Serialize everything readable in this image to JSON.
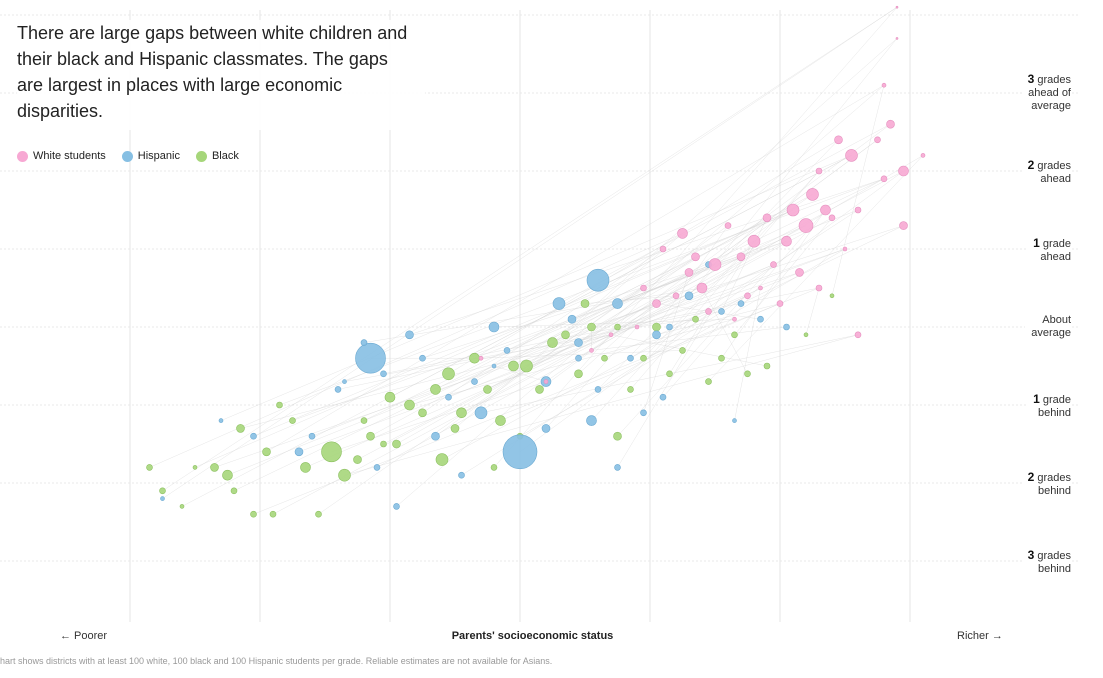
{
  "headline": "There are large gaps between white children and their black and Hispanic classmates. The gaps are largest in places with large economic disparities.",
  "legend": [
    {
      "label": "White students",
      "color": "#f7a8d3"
    },
    {
      "label": "Hispanic",
      "color": "#86bfe3"
    },
    {
      "label": "Black",
      "color": "#a6d67a"
    }
  ],
  "y_labels": [
    {
      "bold": "3",
      "text": "grades",
      "line2": "ahead of",
      "line3": "average"
    },
    {
      "bold": "2",
      "text": "grades",
      "line2": "ahead",
      "line3": ""
    },
    {
      "bold": "1",
      "text": "grade",
      "line2": "ahead",
      "line3": ""
    },
    {
      "bold": "",
      "text": "About",
      "line2": "average",
      "line3": ""
    },
    {
      "bold": "1",
      "text": "grade",
      "line2": "behind",
      "line3": ""
    },
    {
      "bold": "2",
      "text": "grades",
      "line2": "behind",
      "line3": ""
    },
    {
      "bold": "3",
      "text": "grades",
      "line2": "behind",
      "line3": ""
    }
  ],
  "x_left": "← Poorer",
  "x_title": "Parents' socioeconomic status",
  "x_right": "Richer →",
  "note": "hart shows districts with at least 100 white, 100 black and 100 Hispanic students per grade. Reliable estimates are not available for Asians.",
  "chart_data": {
    "type": "scatter",
    "title": "",
    "xlabel": "Parents' socioeconomic status",
    "ylabel": "",
    "xlim": [
      -3,
      3
    ],
    "ylim": [
      -3.5,
      3.8
    ],
    "y_ticks": [
      3,
      2,
      1,
      0,
      -1,
      -2,
      -3
    ],
    "grid": true,
    "legend_position": "top-left",
    "series": [
      {
        "name": "White students",
        "color": "#f7a8d3",
        "points": [
          [
            2.9,
            3.6,
            1
          ],
          [
            2.9,
            3.2,
            1
          ],
          [
            2.8,
            2.6,
            2
          ],
          [
            2.85,
            2.1,
            4
          ],
          [
            2.95,
            1.5,
            5
          ],
          [
            3.1,
            1.7,
            2
          ],
          [
            2.45,
            1.9,
            4
          ],
          [
            2.55,
            1.7,
            6
          ],
          [
            2.75,
            1.9,
            3
          ],
          [
            2.8,
            1.4,
            3
          ],
          [
            2.3,
            1.5,
            3
          ],
          [
            2.25,
            1.2,
            6
          ],
          [
            2.35,
            1.0,
            5
          ],
          [
            2.2,
            0.8,
            7
          ],
          [
            2.1,
            1.0,
            6
          ],
          [
            1.9,
            0.9,
            4
          ],
          [
            2.05,
            0.6,
            5
          ],
          [
            1.8,
            0.6,
            6
          ],
          [
            1.7,
            0.4,
            4
          ],
          [
            2.4,
            0.9,
            3
          ],
          [
            2.6,
            1.0,
            3
          ],
          [
            2.5,
            0.5,
            2
          ],
          [
            2.95,
            0.8,
            4
          ],
          [
            1.95,
            0.3,
            3
          ],
          [
            1.6,
            0.8,
            3
          ],
          [
            1.5,
            0.3,
            6
          ],
          [
            1.4,
            0.0,
            5
          ],
          [
            1.3,
            0.2,
            4
          ],
          [
            1.2,
            -0.1,
            3
          ],
          [
            1.05,
            -0.2,
            4
          ],
          [
            0.95,
            0.0,
            3
          ],
          [
            1.45,
            -0.3,
            3
          ],
          [
            1.65,
            -0.4,
            2
          ],
          [
            1.85,
            0.0,
            2
          ],
          [
            2.0,
            -0.2,
            3
          ],
          [
            0.7,
            -0.6,
            2
          ],
          [
            0.55,
            -0.8,
            2
          ],
          [
            0.2,
            -1.2,
            2
          ],
          [
            -0.3,
            -0.9,
            2
          ],
          [
            1.1,
            0.5,
            3
          ],
          [
            1.25,
            0.7,
            5
          ],
          [
            2.15,
            0.2,
            4
          ],
          [
            2.3,
            0.0,
            3
          ],
          [
            1.75,
            -0.1,
            3
          ],
          [
            2.6,
            -0.6,
            3
          ],
          [
            0.9,
            -0.5,
            2
          ],
          [
            1.35,
            0.4,
            4
          ]
        ]
      },
      {
        "name": "Hispanic",
        "color": "#86bfe3",
        "points": [
          [
            -2.75,
            -2.7,
            2
          ],
          [
            -2.3,
            -1.7,
            2
          ],
          [
            -2.05,
            -1.9,
            3
          ],
          [
            -1.7,
            -2.1,
            4
          ],
          [
            -1.6,
            -1.9,
            3
          ],
          [
            -1.35,
            -1.2,
            2
          ],
          [
            -1.05,
            -1.1,
            3
          ],
          [
            -0.95,
            -2.8,
            3
          ],
          [
            -0.85,
            -0.6,
            4
          ],
          [
            -0.75,
            -0.9,
            3
          ],
          [
            -0.55,
            -1.4,
            3
          ],
          [
            -0.35,
            -1.2,
            3
          ],
          [
            -0.2,
            -1.0,
            2
          ],
          [
            -0.3,
            -1.6,
            6
          ],
          [
            0.0,
            -2.1,
            17
          ],
          [
            0.2,
            -1.2,
            5
          ],
          [
            0.4,
            -0.4,
            4
          ],
          [
            -0.1,
            -0.8,
            3
          ],
          [
            -0.2,
            -0.5,
            5
          ],
          [
            0.3,
            -0.2,
            6
          ],
          [
            0.45,
            -0.7,
            4
          ],
          [
            0.6,
            -1.3,
            3
          ],
          [
            0.75,
            -0.2,
            5
          ],
          [
            0.85,
            -0.9,
            3
          ],
          [
            0.95,
            -1.6,
            3
          ],
          [
            1.05,
            -0.6,
            4
          ],
          [
            1.15,
            -0.5,
            3
          ],
          [
            1.3,
            -0.1,
            4
          ],
          [
            1.45,
            0.3,
            3
          ],
          [
            1.55,
            -0.3,
            3
          ],
          [
            1.7,
            -0.2,
            3
          ],
          [
            1.85,
            -0.4,
            3
          ],
          [
            2.05,
            -0.5,
            3
          ],
          [
            -0.45,
            -2.4,
            3
          ],
          [
            0.6,
            0.1,
            11
          ],
          [
            0.55,
            -1.7,
            5
          ],
          [
            0.75,
            -2.3,
            3
          ],
          [
            -0.65,
            -1.9,
            4
          ],
          [
            -1.4,
            -1.3,
            3
          ],
          [
            -1.15,
            -0.9,
            15
          ],
          [
            0.2,
            -1.8,
            4
          ],
          [
            0.45,
            -0.9,
            3
          ],
          [
            1.1,
            -1.4,
            3
          ],
          [
            -1.1,
            -2.3,
            3
          ],
          [
            -1.2,
            -0.7,
            3
          ],
          [
            1.65,
            -1.7,
            2
          ]
        ]
      },
      {
        "name": "Black",
        "color": "#a6d67a",
        "points": [
          [
            -2.85,
            -2.3,
            3
          ],
          [
            -2.75,
            -2.6,
            3
          ],
          [
            -2.6,
            -2.8,
            2
          ],
          [
            -2.5,
            -2.3,
            2
          ],
          [
            -2.35,
            -2.3,
            4
          ],
          [
            -2.25,
            -2.4,
            5
          ],
          [
            -2.15,
            -1.8,
            4
          ],
          [
            -2.05,
            -2.9,
            3
          ],
          [
            -1.95,
            -2.1,
            4
          ],
          [
            -1.85,
            -1.5,
            3
          ],
          [
            -1.75,
            -1.7,
            3
          ],
          [
            -1.65,
            -2.3,
            5
          ],
          [
            -1.55,
            -2.9,
            3
          ],
          [
            -1.45,
            -2.1,
            10
          ],
          [
            -1.35,
            -2.4,
            6
          ],
          [
            -1.25,
            -2.2,
            4
          ],
          [
            -1.15,
            -1.9,
            4
          ],
          [
            -1.05,
            -2.0,
            3
          ],
          [
            -0.95,
            -2.0,
            4
          ],
          [
            -0.85,
            -1.5,
            5
          ],
          [
            -0.75,
            -1.6,
            4
          ],
          [
            -0.65,
            -1.3,
            5
          ],
          [
            -0.55,
            -1.1,
            6
          ],
          [
            -0.45,
            -1.6,
            5
          ],
          [
            -0.35,
            -0.9,
            5
          ],
          [
            -0.25,
            -1.3,
            4
          ],
          [
            -0.15,
            -1.7,
            5
          ],
          [
            -0.05,
            -1.0,
            5
          ],
          [
            0.05,
            -1.0,
            6
          ],
          [
            0.15,
            -1.3,
            4
          ],
          [
            0.25,
            -0.7,
            5
          ],
          [
            0.35,
            -0.6,
            4
          ],
          [
            0.45,
            -1.1,
            4
          ],
          [
            0.55,
            -0.5,
            4
          ],
          [
            0.65,
            -0.9,
            3
          ],
          [
            0.75,
            -0.5,
            3
          ],
          [
            0.85,
            -1.3,
            3
          ],
          [
            0.95,
            -0.9,
            3
          ],
          [
            1.05,
            -0.5,
            4
          ],
          [
            1.15,
            -1.1,
            3
          ],
          [
            1.25,
            -0.8,
            3
          ],
          [
            1.35,
            -0.4,
            3
          ],
          [
            1.45,
            -1.2,
            3
          ],
          [
            1.55,
            -0.9,
            3
          ],
          [
            1.65,
            -0.6,
            3
          ],
          [
            1.75,
            -1.1,
            3
          ],
          [
            -0.6,
            -2.2,
            6
          ],
          [
            -0.5,
            -1.8,
            4
          ],
          [
            -0.2,
            -2.3,
            3
          ],
          [
            -1.0,
            -1.4,
            5
          ],
          [
            -1.2,
            -1.7,
            3
          ],
          [
            0.0,
            -1.9,
            3
          ],
          [
            0.5,
            -0.2,
            4
          ],
          [
            1.9,
            -1.0,
            3
          ],
          [
            2.2,
            -0.6,
            2
          ],
          [
            2.4,
            -0.1,
            2
          ],
          [
            -2.2,
            -2.6,
            3
          ],
          [
            -1.9,
            -2.9,
            3
          ],
          [
            0.75,
            -1.9,
            4
          ]
        ]
      }
    ]
  }
}
